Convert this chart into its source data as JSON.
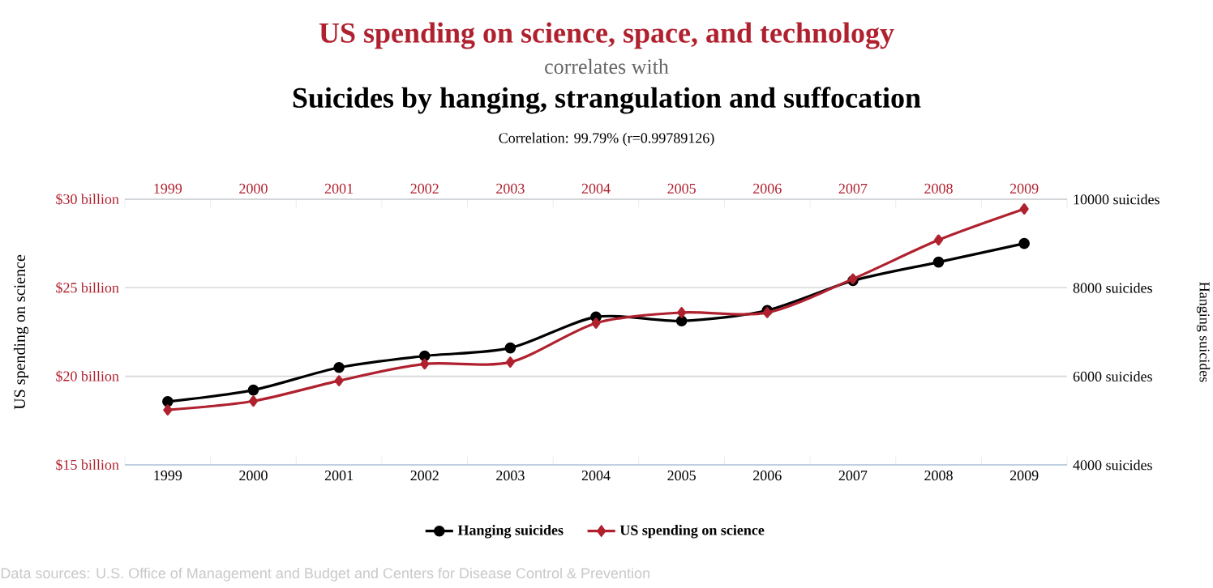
{
  "chart_data": {
    "type": "line",
    "title": "US spending on science, space, and technology",
    "subtitle": "correlates with",
    "annotations": [
      "Suicides by hanging, strangulation and suffocation",
      "Correlation: 99.79% (r=0.99789126)",
      "Data sources: U.S. Office of Management and Budget and Centers for Disease Control & Prevention"
    ],
    "ylabel": "US spending on science",
    "y2label": "Hanging suicides",
    "categories": [
      "1999",
      "2000",
      "2001",
      "2002",
      "2003",
      "2004",
      "2005",
      "2006",
      "2007",
      "2008",
      "2009"
    ],
    "series": [
      {
        "name": "Hanging suicides",
        "color": "#000000",
        "axis": "y2",
        "marker": "circle",
        "values": [
          5430,
          5690,
          6200,
          6460,
          6640,
          7340,
          7250,
          7490,
          8160,
          8580,
          9000
        ]
      },
      {
        "name": "US spending on science",
        "color": "#b0212f",
        "axis": "y",
        "marker": "diamond",
        "values": [
          18.1,
          18.6,
          19.75,
          20.7,
          20.8,
          23.0,
          23.6,
          23.6,
          25.5,
          27.7,
          29.45
        ]
      }
    ],
    "ylim": [
      15,
      30
    ],
    "yticks": [
      {
        "value": 15,
        "label": "$15 billion"
      },
      {
        "value": 20,
        "label": "$20 billion"
      },
      {
        "value": 25,
        "label": "$25 billion"
      },
      {
        "value": 30,
        "label": "$30 billion"
      }
    ],
    "y2lim": [
      4000,
      10000
    ],
    "y2ticks": [
      {
        "value": 4000,
        "label": "4000 suicides"
      },
      {
        "value": 6000,
        "label": "6000 suicides"
      },
      {
        "value": 8000,
        "label": "8000 suicides"
      },
      {
        "value": 10000,
        "label": "10000 suicides"
      }
    ],
    "grid": "y",
    "legend": "bottom",
    "line_style": "solid"
  }
}
